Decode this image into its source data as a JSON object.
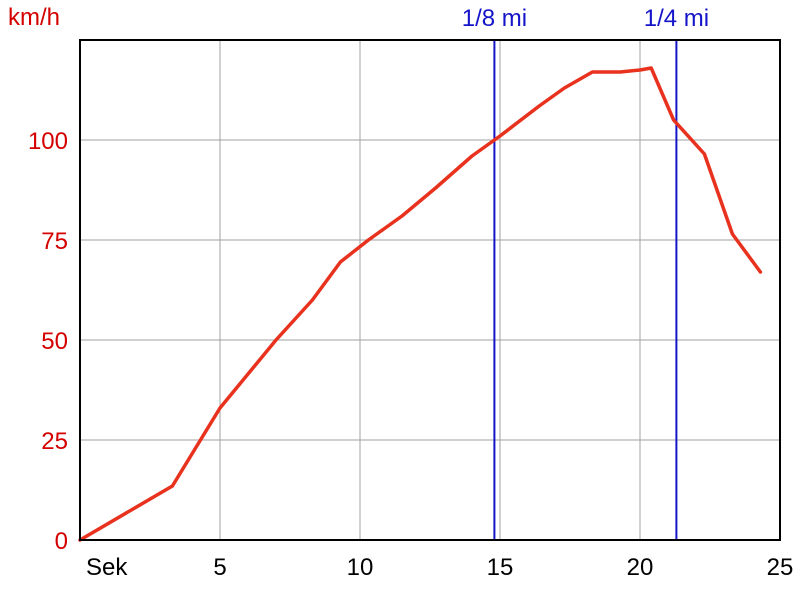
{
  "chart_data": {
    "type": "line",
    "ylabel": "km/h",
    "xlabel": "Sek",
    "xlim": [
      0,
      25
    ],
    "ylim": [
      0,
      125
    ],
    "x_ticks": [
      5,
      10,
      15,
      20,
      25
    ],
    "y_ticks": [
      0,
      25,
      50,
      75,
      100
    ],
    "grid": true,
    "colors": {
      "series": "#e8321e",
      "axis_text": "#d40000",
      "markers": "#1414c8",
      "grid": "#a0a0a0",
      "frame": "#000000"
    },
    "series": [
      {
        "x": [
          0,
          3.3,
          5,
          7,
          8.3,
          9.3,
          10.3,
          11.5,
          12.7,
          14,
          15,
          16.4,
          17.3,
          18.3,
          19.3,
          20,
          20.4,
          21.2,
          22.3,
          23.3,
          24.3
        ],
        "y": [
          0,
          13.5,
          33,
          50,
          60,
          69.5,
          75,
          81,
          88,
          96,
          101,
          108.5,
          113,
          117,
          117,
          117.5,
          118,
          105,
          96.5,
          76.5,
          67
        ]
      }
    ],
    "markers": [
      {
        "label": "1/8 mi",
        "x": 14.8
      },
      {
        "label": "1/4 mi",
        "x": 21.3
      }
    ]
  }
}
